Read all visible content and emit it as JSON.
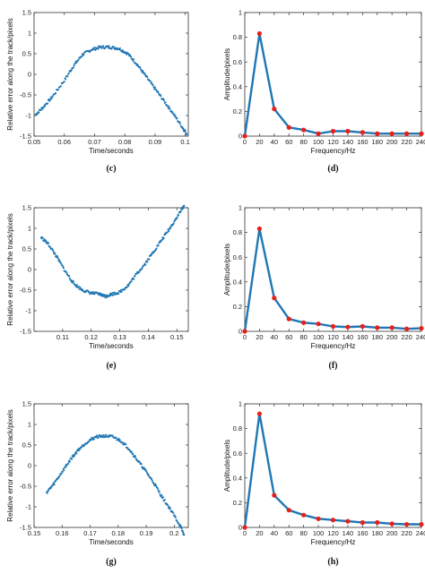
{
  "chart_data": [
    {
      "panel_label": "(c)",
      "type": "scatter",
      "xlabel": "Time/seconds",
      "ylabel": "Relative error along the track/pixels",
      "xlim": [
        0.05,
        0.101
      ],
      "ylim": [
        -1.5,
        1.5
      ],
      "xticks": [
        0.05,
        0.06,
        0.07,
        0.08,
        0.09,
        0.1
      ],
      "xtick_labels": [
        "0.05",
        "0.06",
        "0.07",
        "0.08",
        "0.09",
        "0.1"
      ],
      "yticks": [
        -1.5,
        -1,
        -0.5,
        0,
        0.5,
        1,
        1.5
      ],
      "ytick_labels": [
        "-1.5",
        "-1",
        "-0.5",
        "0",
        "0.5",
        "1",
        "1.5"
      ],
      "color": "#1f77b4",
      "x": [
        0.0505,
        0.053,
        0.056,
        0.06,
        0.063,
        0.066,
        0.069,
        0.072,
        0.075,
        0.078,
        0.081,
        0.084,
        0.087,
        0.09,
        0.093,
        0.096,
        0.099,
        0.1005
      ],
      "y": [
        -0.98,
        -0.8,
        -0.55,
        -0.15,
        0.2,
        0.48,
        0.6,
        0.66,
        0.66,
        0.63,
        0.5,
        0.25,
        -0.05,
        -0.35,
        -0.65,
        -0.95,
        -1.28,
        -1.45
      ]
    },
    {
      "panel_label": "(d)",
      "type": "line",
      "xlabel": "Frequency/Hz",
      "ylabel": "Amplitude/pixels",
      "xlim": [
        0,
        240
      ],
      "ylim": [
        0,
        1
      ],
      "xticks": [
        0,
        20,
        40,
        60,
        80,
        100,
        120,
        140,
        160,
        180,
        200,
        220,
        240
      ],
      "xtick_labels": [
        "0",
        "20",
        "40",
        "60",
        "80",
        "100",
        "120",
        "140",
        "160",
        "180",
        "200",
        "220",
        "240"
      ],
      "yticks": [
        0,
        0.2,
        0.4,
        0.6,
        0.8,
        1
      ],
      "ytick_labels": [
        "0",
        "0.2",
        "0.4",
        "0.6",
        "0.8",
        "1"
      ],
      "color": "#1f77b4",
      "marker_color": "#e8201a",
      "x": [
        0,
        20,
        40,
        60,
        80,
        100,
        120,
        140,
        160,
        180,
        200,
        220,
        240
      ],
      "y": [
        0.0,
        0.83,
        0.22,
        0.07,
        0.05,
        0.02,
        0.04,
        0.04,
        0.03,
        0.02,
        0.02,
        0.02,
        0.02
      ]
    },
    {
      "panel_label": "(e)",
      "type": "scatter",
      "xlabel": "Time/seconds",
      "ylabel": "Relative error along the track/pixels",
      "xlim": [
        0.1,
        0.154
      ],
      "ylim": [
        -1.5,
        1.5
      ],
      "xticks": [
        0.11,
        0.12,
        0.13,
        0.14,
        0.15
      ],
      "xtick_labels": [
        "0.11",
        "0.12",
        "0.13",
        "0.14",
        "0.15"
      ],
      "yticks": [
        -1.5,
        -1,
        -0.5,
        0,
        0.5,
        1,
        1.5
      ],
      "ytick_labels": [
        "-1.5",
        "-1",
        "-0.5",
        "0",
        "0.5",
        "1",
        "1.5"
      ],
      "color": "#1f77b4",
      "x": [
        0.1025,
        0.105,
        0.108,
        0.111,
        0.114,
        0.117,
        0.12,
        0.123,
        0.125,
        0.127,
        0.13,
        0.133,
        0.136,
        0.139,
        0.142,
        0.145,
        0.148,
        0.151,
        0.1525
      ],
      "y": [
        0.78,
        0.62,
        0.3,
        -0.05,
        -0.35,
        -0.5,
        -0.57,
        -0.6,
        -0.65,
        -0.6,
        -0.55,
        -0.38,
        -0.1,
        0.15,
        0.45,
        0.75,
        1.05,
        1.38,
        1.55
      ]
    },
    {
      "panel_label": "(f)",
      "type": "line",
      "xlabel": "Frequency/Hz",
      "ylabel": "Amplitude/pixels",
      "xlim": [
        0,
        240
      ],
      "ylim": [
        0,
        1
      ],
      "xticks": [
        0,
        20,
        40,
        60,
        80,
        100,
        120,
        140,
        160,
        180,
        200,
        220,
        240
      ],
      "xtick_labels": [
        "0",
        "20",
        "40",
        "60",
        "80",
        "100",
        "120",
        "140",
        "160",
        "180",
        "200",
        "220",
        "240"
      ],
      "yticks": [
        0,
        0.2,
        0.4,
        0.6,
        0.8,
        1
      ],
      "ytick_labels": [
        "0",
        "0.2",
        "0.4",
        "0.6",
        "0.8",
        "1"
      ],
      "color": "#1f77b4",
      "marker_color": "#e8201a",
      "x": [
        0,
        20,
        40,
        60,
        80,
        100,
        120,
        140,
        160,
        180,
        200,
        220,
        240
      ],
      "y": [
        0.0,
        0.83,
        0.27,
        0.1,
        0.07,
        0.06,
        0.04,
        0.035,
        0.04,
        0.03,
        0.03,
        0.02,
        0.025
      ]
    },
    {
      "panel_label": "(g)",
      "type": "scatter",
      "xlabel": "Time/seconds",
      "ylabel": "Relative error along the track/pixels",
      "xlim": [
        0.15,
        0.205
      ],
      "ylim": [
        -1.5,
        1.5
      ],
      "xticks": [
        0.15,
        0.16,
        0.17,
        0.18,
        0.19,
        0.2
      ],
      "xtick_labels": [
        "0.15",
        "0.16",
        "0.17",
        "0.18",
        "0.19",
        "0.2"
      ],
      "yticks": [
        -1.5,
        -1,
        -0.5,
        0,
        0.5,
        1,
        1.5
      ],
      "ytick_labels": [
        "-1.5",
        "-1",
        "-0.5",
        "0",
        "0.5",
        "1",
        "1.5"
      ],
      "color": "#1f77b4",
      "x": [
        0.1545,
        0.157,
        0.16,
        0.163,
        0.166,
        0.169,
        0.172,
        0.175,
        0.178,
        0.181,
        0.184,
        0.187,
        0.19,
        0.193,
        0.196,
        0.199,
        0.202,
        0.2035
      ],
      "y": [
        -0.65,
        -0.45,
        -0.15,
        0.15,
        0.4,
        0.58,
        0.7,
        0.72,
        0.7,
        0.6,
        0.4,
        0.12,
        -0.15,
        -0.45,
        -0.8,
        -1.1,
        -1.45,
        -1.68
      ]
    },
    {
      "panel_label": "(h)",
      "type": "line",
      "xlabel": "Frequency/Hz",
      "ylabel": "Amplitude/pixels",
      "xlim": [
        0,
        240
      ],
      "ylim": [
        0,
        1
      ],
      "xticks": [
        0,
        20,
        40,
        60,
        80,
        100,
        120,
        140,
        160,
        180,
        200,
        220,
        240
      ],
      "xtick_labels": [
        "0",
        "20",
        "40",
        "60",
        "80",
        "100",
        "120",
        "140",
        "160",
        "180",
        "200",
        "220",
        "240"
      ],
      "yticks": [
        0,
        0.2,
        0.4,
        0.6,
        0.8,
        1
      ],
      "ytick_labels": [
        "0",
        "0.2",
        "0.4",
        "0.6",
        "0.8",
        "1"
      ],
      "color": "#1f77b4",
      "marker_color": "#e8201a",
      "x": [
        0,
        20,
        40,
        60,
        80,
        100,
        120,
        140,
        160,
        180,
        200,
        220,
        240
      ],
      "y": [
        0.0,
        0.92,
        0.26,
        0.14,
        0.1,
        0.07,
        0.06,
        0.05,
        0.04,
        0.04,
        0.03,
        0.025,
        0.025
      ]
    }
  ]
}
